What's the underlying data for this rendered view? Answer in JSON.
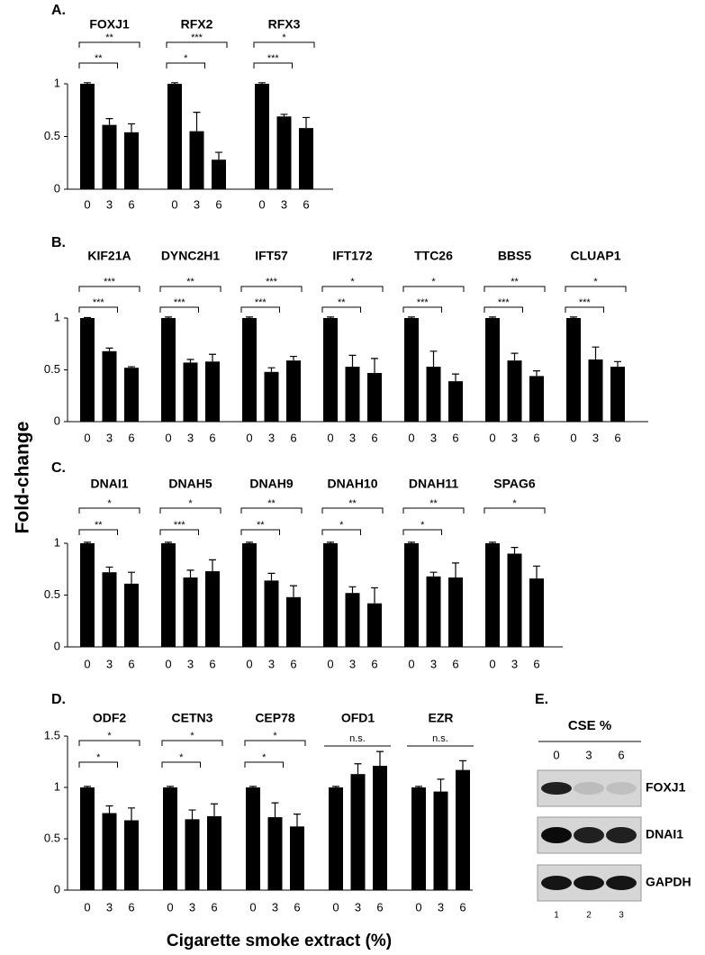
{
  "y_label": "Fold-change",
  "x_label": "Cigarette smoke extract (%)",
  "chart_data": [
    {
      "type": "bar",
      "panel": "A.",
      "categories": [
        "0",
        "3",
        "6"
      ],
      "ylim": [
        0,
        1
      ],
      "yticks": [
        0,
        0.5,
        1
      ],
      "color": "#000000",
      "groups": [
        {
          "name": "FOXJ1",
          "values": [
            1,
            0.61,
            0.54
          ],
          "errors": [
            0.01,
            0.06,
            0.08
          ],
          "sig_vs_3": "**",
          "sig_vs_6": "**"
        },
        {
          "name": "RFX2",
          "values": [
            1,
            0.55,
            0.28
          ],
          "errors": [
            0.01,
            0.18,
            0.07
          ],
          "sig_vs_3": "*",
          "sig_vs_6": "***"
        },
        {
          "name": "RFX3",
          "values": [
            1,
            0.69,
            0.58
          ],
          "errors": [
            0.01,
            0.02,
            0.1
          ],
          "sig_vs_3": "***",
          "sig_vs_6": "*"
        }
      ]
    },
    {
      "type": "bar",
      "panel": "B.",
      "categories": [
        "0",
        "3",
        "6"
      ],
      "ylim": [
        0,
        1
      ],
      "yticks": [
        0,
        0.5,
        1
      ],
      "color": "#000000",
      "groups": [
        {
          "name": "KIF21A",
          "values": [
            1,
            0.68,
            0.52
          ],
          "errors": [
            0.005,
            0.03,
            0.01
          ],
          "sig_vs_3": "***",
          "sig_vs_6": "***"
        },
        {
          "name": "DYNC2H1",
          "values": [
            1,
            0.57,
            0.58
          ],
          "errors": [
            0.01,
            0.03,
            0.07
          ],
          "sig_vs_3": "***",
          "sig_vs_6": "**"
        },
        {
          "name": "IFT57",
          "values": [
            1,
            0.48,
            0.59
          ],
          "errors": [
            0.01,
            0.04,
            0.04
          ],
          "sig_vs_3": "***",
          "sig_vs_6": "***"
        },
        {
          "name": "IFT172",
          "values": [
            1,
            0.53,
            0.47
          ],
          "errors": [
            0.01,
            0.11,
            0.14
          ],
          "sig_vs_3": "**",
          "sig_vs_6": "*"
        },
        {
          "name": "TTC26",
          "values": [
            1,
            0.53,
            0.39
          ],
          "errors": [
            0.01,
            0.15,
            0.07
          ],
          "sig_vs_3": "***",
          "sig_vs_6": "*"
        },
        {
          "name": "BBS5",
          "values": [
            1,
            0.59,
            0.44
          ],
          "errors": [
            0.01,
            0.07,
            0.05
          ],
          "sig_vs_3": "***",
          "sig_vs_6": "**"
        },
        {
          "name": "CLUAP1",
          "values": [
            1,
            0.6,
            0.53
          ],
          "errors": [
            0.01,
            0.12,
            0.05
          ],
          "sig_vs_3": "***",
          "sig_vs_6": "*"
        }
      ]
    },
    {
      "type": "bar",
      "panel": "C.",
      "categories": [
        "0",
        "3",
        "6"
      ],
      "ylim": [
        0,
        1
      ],
      "yticks": [
        0,
        0.5,
        1
      ],
      "color": "#000000",
      "groups": [
        {
          "name": "DNAI1",
          "values": [
            1,
            0.72,
            0.61
          ],
          "errors": [
            0.01,
            0.05,
            0.11
          ],
          "sig_vs_3": "**",
          "sig_vs_6": "*"
        },
        {
          "name": "DNAH5",
          "values": [
            1,
            0.67,
            0.73
          ],
          "errors": [
            0.01,
            0.07,
            0.11
          ],
          "sig_vs_3": "***",
          "sig_vs_6": "*"
        },
        {
          "name": "DNAH9",
          "values": [
            1,
            0.64,
            0.48
          ],
          "errors": [
            0.01,
            0.07,
            0.11
          ],
          "sig_vs_3": "**",
          "sig_vs_6": "**"
        },
        {
          "name": "DNAH10",
          "values": [
            1,
            0.52,
            0.42
          ],
          "errors": [
            0.01,
            0.06,
            0.15
          ],
          "sig_vs_3": "*",
          "sig_vs_6": "**"
        },
        {
          "name": "DNAH11",
          "values": [
            1,
            0.68,
            0.67
          ],
          "errors": [
            0.01,
            0.04,
            0.14
          ],
          "sig_vs_3": "*",
          "sig_vs_6": "**"
        },
        {
          "name": "SPAG6",
          "values": [
            1,
            0.9,
            0.66
          ],
          "errors": [
            0.01,
            0.06,
            0.12
          ],
          "sig_vs_6": "*"
        }
      ]
    },
    {
      "type": "bar",
      "panel": "D.",
      "categories": [
        "0",
        "3",
        "6"
      ],
      "ylim": [
        0,
        1.5
      ],
      "yticks": [
        0,
        0.5,
        1,
        1.5
      ],
      "color": "#000000",
      "groups": [
        {
          "name": "ODF2",
          "values": [
            1,
            0.75,
            0.68
          ],
          "errors": [
            0.01,
            0.07,
            0.12
          ],
          "sig_vs_3": "*",
          "sig_vs_6": "*"
        },
        {
          "name": "CETN3",
          "values": [
            1,
            0.69,
            0.72
          ],
          "errors": [
            0.01,
            0.09,
            0.12
          ],
          "sig_vs_3": "*",
          "sig_vs_6": "*"
        },
        {
          "name": "CEP78",
          "values": [
            1,
            0.71,
            0.62
          ],
          "errors": [
            0.01,
            0.14,
            0.12
          ],
          "sig_vs_3": "*",
          "sig_vs_6": "*"
        },
        {
          "name": "OFD1",
          "values": [
            1,
            1.13,
            1.21
          ],
          "errors": [
            0.01,
            0.1,
            0.14
          ],
          "sig_all": "n.s."
        },
        {
          "name": "EZR",
          "values": [
            1,
            0.96,
            1.17
          ],
          "errors": [
            0.01,
            0.12,
            0.09
          ],
          "sig_all": "n.s."
        }
      ]
    }
  ],
  "blot": {
    "panel": "E.",
    "header": "CSE %",
    "lanes": [
      "0",
      "3",
      "6"
    ],
    "lane_numbers": [
      "1",
      "2",
      "3"
    ],
    "rows": [
      "FOXJ1",
      "DNAI1",
      "GAPDH"
    ]
  }
}
